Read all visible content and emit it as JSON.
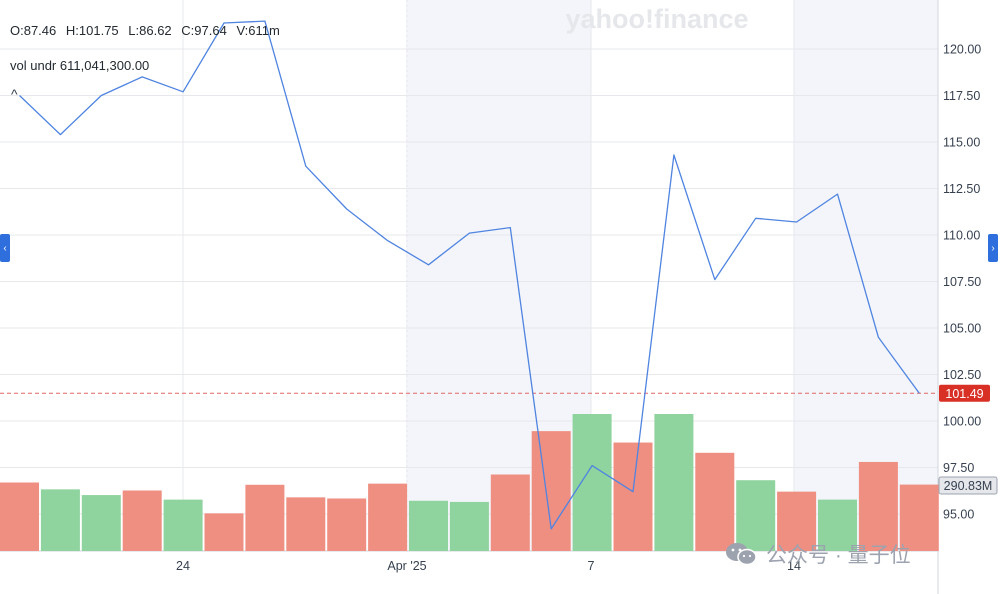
{
  "ohlc": {
    "open": "O:87.46",
    "high": "H:101.75",
    "low": "L:86.62",
    "close": "C:97.64",
    "volume": "V:611m"
  },
  "volume_row": {
    "label": "vol undr",
    "value": "611,041,300.00"
  },
  "collapse_glyph": "^",
  "side_tabs": {
    "left_glyph": "‹",
    "right_glyph": "›"
  },
  "brand_watermark": "yahoo!finance",
  "footer_watermark": {
    "text": "公众号 · 量子位",
    "icon": "wechat-icon"
  },
  "colors": {
    "line": "#4f84e0",
    "bar_down": "#ef8f82",
    "bar_up": "#8fd39e",
    "last_price_badge": "#d93025",
    "volume_badge": "#6b7280",
    "shading": "#f3f5fa",
    "grid": "#e6e8ec"
  },
  "chart_data": {
    "type": "line",
    "y_axis": {
      "ticks": [
        "120.00",
        "117.50",
        "115.00",
        "112.50",
        "110.00",
        "107.50",
        "105.00",
        "102.50",
        "100.00",
        "97.50",
        "95.00"
      ],
      "range": [
        92.4,
        126.2
      ]
    },
    "x_axis": {
      "labels": [
        "24",
        "Apr '25",
        "7",
        "14"
      ]
    },
    "last_price": {
      "value": 101.49,
      "label": "101.49"
    },
    "volume_label": "290.83M",
    "price_series": [
      {
        "x": "Mar 19",
        "y": 117.5
      },
      {
        "x": "Mar 20",
        "y": 115.4
      },
      {
        "x": "Mar 21",
        "y": 117.5
      },
      {
        "x": "Mar 24",
        "y": 118.5
      },
      {
        "x": "Mar 25",
        "y": 117.7
      },
      {
        "x": "Mar 26",
        "y": 121.4
      },
      {
        "x": "Mar 27",
        "y": 121.5
      },
      {
        "x": "Mar 28",
        "y": 113.7
      },
      {
        "x": "Mar 31",
        "y": 111.4
      },
      {
        "x": "Apr 1",
        "y": 109.7
      },
      {
        "x": "Apr 2",
        "y": 108.4
      },
      {
        "x": "Apr 3",
        "y": 110.1
      },
      {
        "x": "Apr 4",
        "y": 110.4
      },
      {
        "x": "Apr 7",
        "y": 94.2
      },
      {
        "x": "Apr 8",
        "y": 97.6
      },
      {
        "x": "Apr 9",
        "y": 96.2
      },
      {
        "x": "Apr 10",
        "y": 114.3
      },
      {
        "x": "Apr 11",
        "y": 107.6
      },
      {
        "x": "Apr 14",
        "y": 110.9
      },
      {
        "x": "Apr 15",
        "y": 110.7
      },
      {
        "x": "Apr 16",
        "y": 112.2
      },
      {
        "x": "Apr 17",
        "y": 104.5
      },
      {
        "x": "Apr 18",
        "y": 101.49
      }
    ],
    "volume_series": [
      {
        "x": "Mar 19",
        "volume_m": 300,
        "direction": "down"
      },
      {
        "x": "Mar 20",
        "volume_m": 270,
        "direction": "up"
      },
      {
        "x": "Mar 21",
        "volume_m": 245,
        "direction": "up"
      },
      {
        "x": "Mar 24",
        "volume_m": 265,
        "direction": "down"
      },
      {
        "x": "Mar 25",
        "volume_m": 225,
        "direction": "up"
      },
      {
        "x": "Mar 26",
        "volume_m": 165,
        "direction": "down"
      },
      {
        "x": "Mar 27",
        "volume_m": 290,
        "direction": "down"
      },
      {
        "x": "Mar 28",
        "volume_m": 235,
        "direction": "down"
      },
      {
        "x": "Mar 31",
        "volume_m": 230,
        "direction": "down"
      },
      {
        "x": "Apr 1",
        "volume_m": 295,
        "direction": "down"
      },
      {
        "x": "Apr 2",
        "volume_m": 220,
        "direction": "up"
      },
      {
        "x": "Apr 3",
        "volume_m": 215,
        "direction": "up"
      },
      {
        "x": "Apr 4",
        "volume_m": 335,
        "direction": "down"
      },
      {
        "x": "Apr 7",
        "volume_m": 525,
        "direction": "down"
      },
      {
        "x": "Apr 8",
        "volume_m": 600,
        "direction": "up"
      },
      {
        "x": "Apr 9",
        "volume_m": 475,
        "direction": "down"
      },
      {
        "x": "Apr 10",
        "volume_m": 600,
        "direction": "up"
      },
      {
        "x": "Apr 11",
        "volume_m": 430,
        "direction": "down"
      },
      {
        "x": "Apr 14",
        "volume_m": 310,
        "direction": "up"
      },
      {
        "x": "Apr 15",
        "volume_m": 260,
        "direction": "down"
      },
      {
        "x": "Apr 16",
        "volume_m": 225,
        "direction": "up"
      },
      {
        "x": "Apr 17",
        "volume_m": 390,
        "direction": "down"
      },
      {
        "x": "Apr 18",
        "volume_m": 290.83,
        "direction": "down"
      }
    ]
  }
}
